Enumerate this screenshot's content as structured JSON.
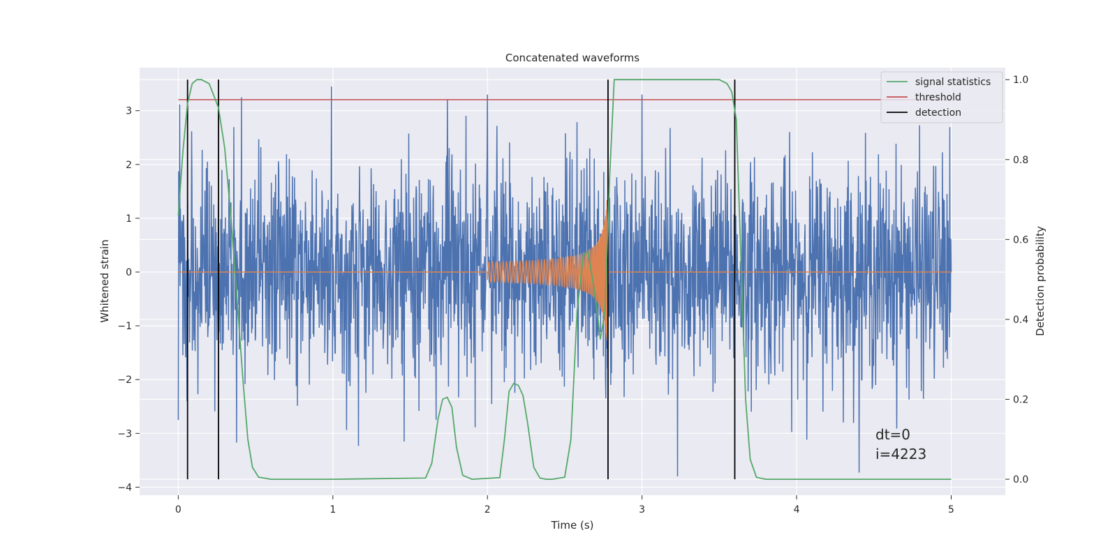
{
  "chart_data": {
    "type": "line",
    "title": "Concatenated waveforms",
    "xlabel": "Time (s)",
    "ylabel": "Whitened strain",
    "ylabel_right": "Detection probability",
    "xlim": [
      -0.25,
      5.35
    ],
    "ylim": [
      -4.15,
      3.8
    ],
    "ylim_right": [
      -0.04,
      1.03
    ],
    "x_ticks": [
      0,
      1,
      2,
      3,
      4,
      5
    ],
    "y_ticks": [
      -4,
      -3,
      -2,
      -1,
      0,
      1,
      2,
      3
    ],
    "y_ticks_right": [
      0.0,
      0.2,
      0.4,
      0.6,
      0.8,
      1.0
    ],
    "x_tick_labels": [
      "0",
      "1",
      "2",
      "3",
      "4",
      "5"
    ],
    "y_tick_labels": [
      "−4",
      "−3",
      "−2",
      "−1",
      "0",
      "1",
      "2",
      "3"
    ],
    "y_tick_labels_right": [
      "0.0",
      "0.2",
      "0.4",
      "0.6",
      "0.8",
      "1.0"
    ],
    "grid": true,
    "legend_position": "top-right",
    "legend": [
      "signal statistics",
      "threshold",
      "detection"
    ],
    "colors": {
      "noise": "#4c72b0",
      "waveform": "#dd8452",
      "signal_statistics": "#55a868",
      "threshold": "#c44e52",
      "detection": "#000000",
      "background": "#eaeaf2",
      "grid": "#ffffff"
    },
    "noise": {
      "x_range": [
        0,
        5
      ],
      "typical_amplitude": 1.6,
      "max": 3.5,
      "min": -3.8,
      "peaks": [
        [
          0.0,
          -2.75
        ],
        [
          0.99,
          3.45
        ],
        [
          1.74,
          3.2
        ],
        [
          2.0,
          3.3
        ],
        [
          3.0,
          3.3
        ],
        [
          3.23,
          -3.8
        ]
      ]
    },
    "waveform": {
      "x_range": [
        0,
        5
      ],
      "chirp_start": 2.0,
      "merger_time": 2.78,
      "start_amplitude": 0.12,
      "peak_amplitude": 1.7
    },
    "threshold": {
      "right_axis_value": 0.95,
      "x_range": [
        0,
        5
      ]
    },
    "signal_statistics": {
      "x": [
        0.0,
        0.03,
        0.06,
        0.09,
        0.12,
        0.15,
        0.2,
        0.23,
        0.26,
        0.3,
        0.34,
        0.38,
        0.42,
        0.45,
        0.48,
        0.52,
        0.6,
        1.0,
        1.6,
        1.64,
        1.68,
        1.71,
        1.74,
        1.77,
        1.8,
        1.84,
        1.9,
        2.08,
        2.11,
        2.14,
        2.17,
        2.2,
        2.23,
        2.26,
        2.3,
        2.34,
        2.38,
        2.42,
        2.5,
        2.54,
        2.58,
        2.62,
        2.65,
        2.68,
        2.71,
        2.73,
        2.76,
        2.79,
        2.82,
        2.9,
        3.2,
        3.5,
        3.55,
        3.58,
        3.61,
        3.64,
        3.67,
        3.7,
        3.74,
        3.8,
        4.0,
        5.0
      ],
      "y": [
        0.66,
        0.82,
        0.94,
        0.99,
        1.0,
        1.0,
        0.99,
        0.96,
        0.93,
        0.83,
        0.66,
        0.45,
        0.24,
        0.1,
        0.03,
        0.005,
        0.0,
        0.0,
        0.003,
        0.04,
        0.15,
        0.2,
        0.205,
        0.18,
        0.08,
        0.01,
        0.0,
        0.004,
        0.1,
        0.22,
        0.24,
        0.235,
        0.21,
        0.14,
        0.03,
        0.003,
        0.0,
        0.0,
        0.005,
        0.1,
        0.42,
        0.56,
        0.57,
        0.5,
        0.42,
        0.35,
        0.42,
        0.75,
        1.0,
        1.0,
        1.0,
        1.0,
        0.99,
        0.97,
        0.9,
        0.55,
        0.2,
        0.05,
        0.005,
        0.0,
        0.0,
        0.0
      ]
    },
    "detections": [
      0.06,
      0.26,
      2.78,
      3.6
    ],
    "annotations": [
      "dt=0",
      "i=4223"
    ]
  }
}
